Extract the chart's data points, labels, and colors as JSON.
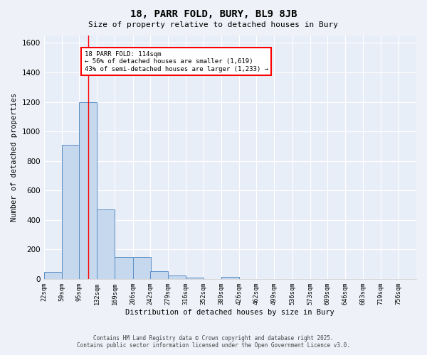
{
  "title": "18, PARR FOLD, BURY, BL9 8JB",
  "subtitle": "Size of property relative to detached houses in Bury",
  "xlabel": "Distribution of detached houses by size in Bury",
  "ylabel": "Number of detached properties",
  "bar_color": "#c5d8ed",
  "bar_edge_color": "#5b8ec4",
  "background_color": "#e8eef8",
  "fig_background_color": "#eef2f8",
  "grid_color": "#ffffff",
  "bin_labels": [
    "22sqm",
    "59sqm",
    "95sqm",
    "132sqm",
    "169sqm",
    "206sqm",
    "242sqm",
    "279sqm",
    "316sqm",
    "352sqm",
    "389sqm",
    "426sqm",
    "462sqm",
    "499sqm",
    "536sqm",
    "573sqm",
    "609sqm",
    "646sqm",
    "683sqm",
    "719sqm",
    "756sqm"
  ],
  "bin_edges": [
    22,
    59,
    95,
    132,
    169,
    206,
    242,
    279,
    316,
    352,
    389,
    426,
    462,
    499,
    536,
    573,
    609,
    646,
    683,
    719,
    756
  ],
  "bar_heights": [
    50,
    910,
    1200,
    470,
    150,
    150,
    55,
    25,
    10,
    0,
    15,
    0,
    0,
    0,
    0,
    0,
    0,
    0,
    0,
    0
  ],
  "ylim": [
    0,
    1650
  ],
  "yticks": [
    0,
    200,
    400,
    600,
    800,
    1000,
    1200,
    1400,
    1600
  ],
  "red_line_x": 114,
  "annotation_text": "18 PARR FOLD: 114sqm\n← 56% of detached houses are smaller (1,619)\n43% of semi-detached houses are larger (1,233) →",
  "footer_line1": "Contains HM Land Registry data © Crown copyright and database right 2025.",
  "footer_line2": "Contains public sector information licensed under the Open Government Licence v3.0."
}
